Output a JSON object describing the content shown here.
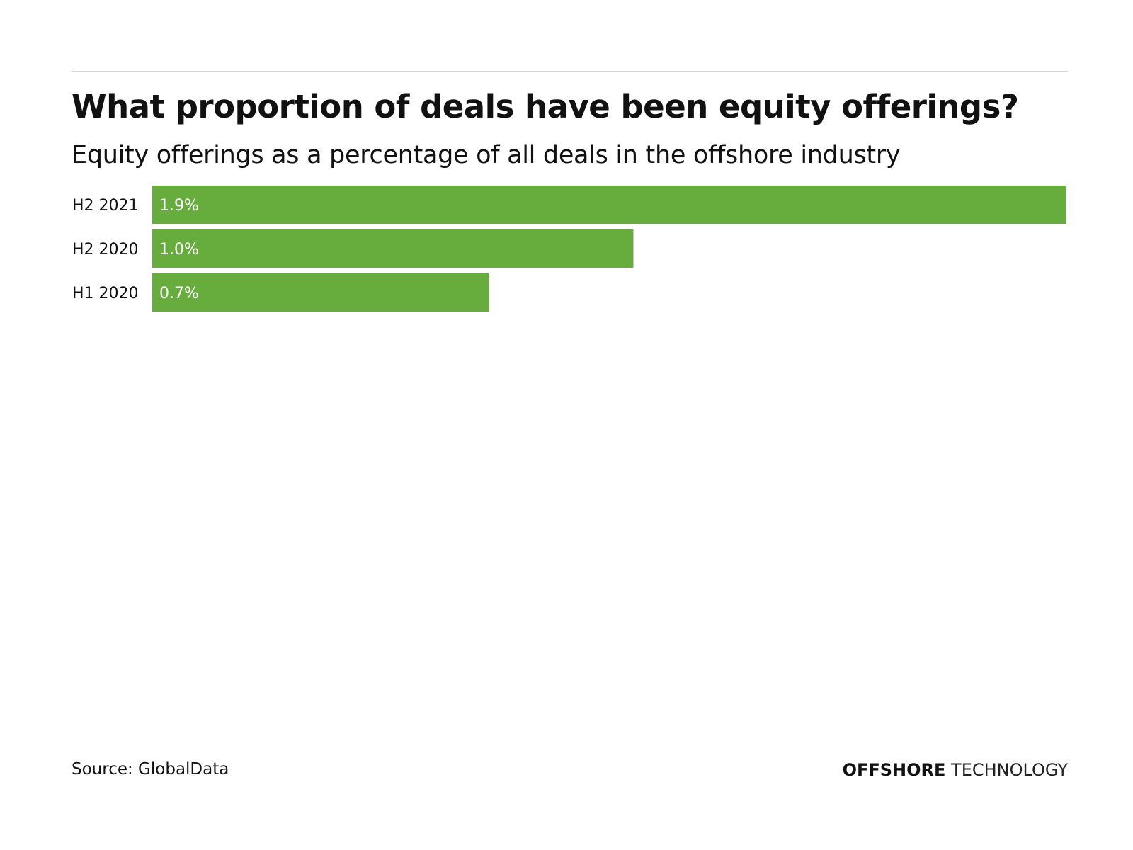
{
  "chart_data": {
    "type": "bar",
    "orientation": "horizontal",
    "title": "What proportion of deals have been equity offerings?",
    "subtitle": "Equity offerings as a percentage of all deals in the offshore industry",
    "categories": [
      "H2 2021",
      "H2 2020",
      "H1 2020"
    ],
    "values": [
      1.9,
      1.0,
      0.7
    ],
    "data_labels": [
      "1.9%",
      "1.0%",
      "0.7%"
    ],
    "unit": "%",
    "xlim": [
      0,
      1.9
    ],
    "grid": false,
    "bar_color": "#67ad3e"
  },
  "footer": {
    "source": "Source: GlobalData",
    "logo_bold": "OFFSHORE",
    "logo_light": "TECHNOLOGY"
  }
}
